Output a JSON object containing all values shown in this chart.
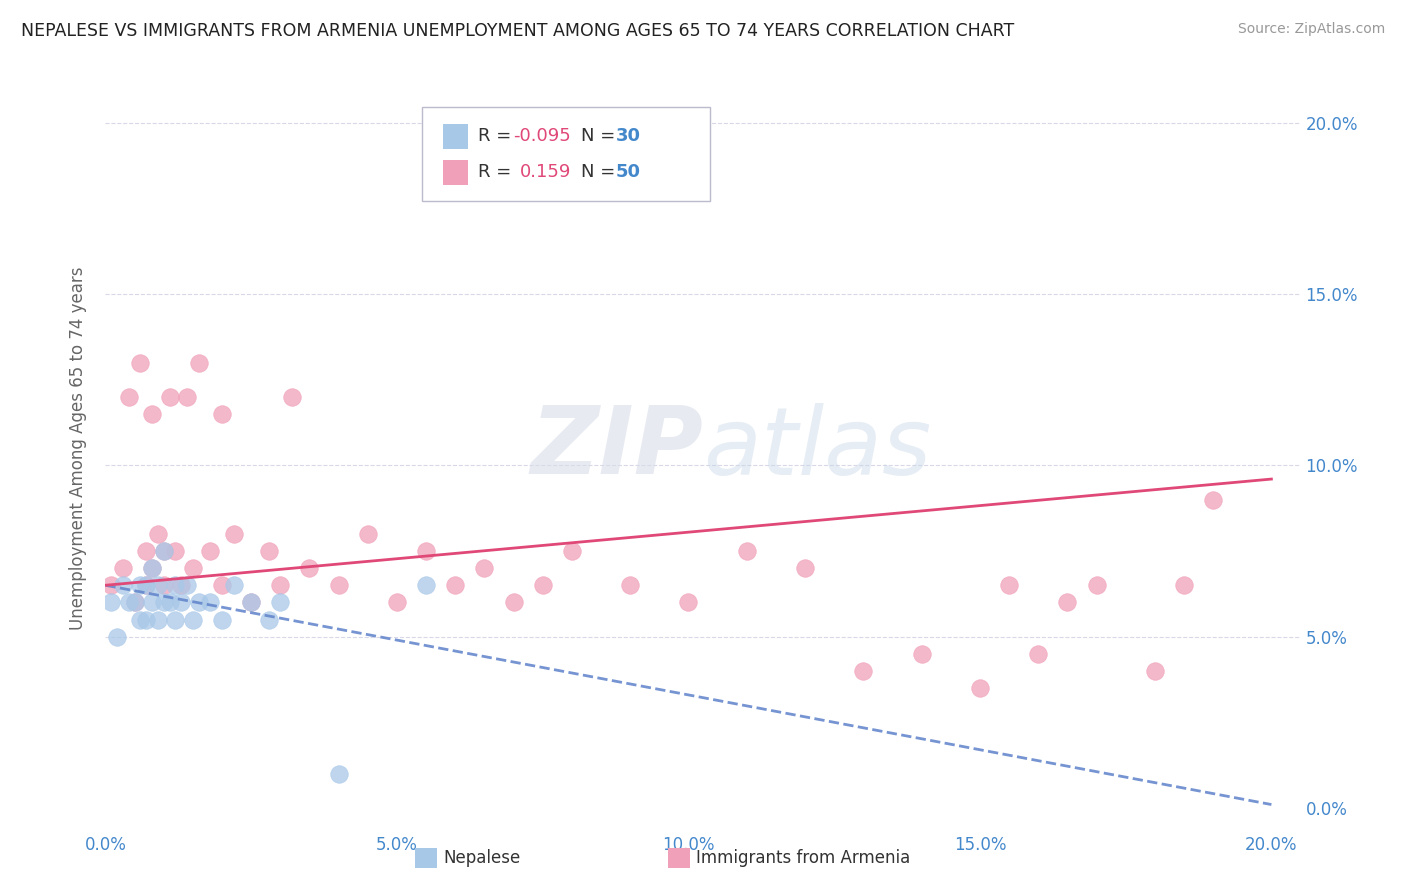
{
  "title": "NEPALESE VS IMMIGRANTS FROM ARMENIA UNEMPLOYMENT AMONG AGES 65 TO 74 YEARS CORRELATION CHART",
  "source": "Source: ZipAtlas.com",
  "ylabel": "Unemployment Among Ages 65 to 74 years",
  "xlim": [
    0.0,
    0.205
  ],
  "ylim": [
    -0.005,
    0.215
  ],
  "xticks": [
    0.0,
    0.05,
    0.1,
    0.15,
    0.2
  ],
  "yticks": [
    0.0,
    0.05,
    0.1,
    0.15,
    0.2
  ],
  "xticklabels": [
    "0.0%",
    "5.0%",
    "10.0%",
    "15.0%",
    "20.0%"
  ],
  "yticklabels": [
    "0.0%",
    "5.0%",
    "10.0%",
    "15.0%",
    "20.0%"
  ],
  "nepalese_color": "#a8c8e8",
  "armenia_color": "#f0a0b8",
  "nepalese_label": "Nepalese",
  "armenia_label": "Immigrants from Armenia",
  "nepalese_R": -0.095,
  "nepalese_N": 30,
  "armenia_R": 0.159,
  "armenia_N": 50,
  "tick_color": "#4488cc",
  "axis_label_color": "#666666",
  "background_color": "#ffffff",
  "grid_color": "#d8d8e8",
  "nepalese_line_color": "#6688cc",
  "armenia_line_color": "#e04878",
  "nepalese_points_x": [
    0.001,
    0.002,
    0.003,
    0.004,
    0.005,
    0.006,
    0.006,
    0.007,
    0.007,
    0.008,
    0.008,
    0.009,
    0.009,
    0.01,
    0.01,
    0.011,
    0.012,
    0.012,
    0.013,
    0.014,
    0.015,
    0.016,
    0.018,
    0.02,
    0.022,
    0.025,
    0.028,
    0.03,
    0.04,
    0.055
  ],
  "nepalese_points_y": [
    0.06,
    0.05,
    0.065,
    0.06,
    0.06,
    0.055,
    0.065,
    0.065,
    0.055,
    0.07,
    0.06,
    0.065,
    0.055,
    0.075,
    0.06,
    0.06,
    0.065,
    0.055,
    0.06,
    0.065,
    0.055,
    0.06,
    0.06,
    0.055,
    0.065,
    0.06,
    0.055,
    0.06,
    0.01,
    0.065
  ],
  "armenia_points_x": [
    0.001,
    0.003,
    0.004,
    0.005,
    0.006,
    0.007,
    0.007,
    0.008,
    0.008,
    0.009,
    0.01,
    0.01,
    0.011,
    0.012,
    0.013,
    0.014,
    0.015,
    0.016,
    0.018,
    0.02,
    0.02,
    0.022,
    0.025,
    0.028,
    0.03,
    0.032,
    0.035,
    0.04,
    0.045,
    0.05,
    0.055,
    0.06,
    0.065,
    0.07,
    0.075,
    0.08,
    0.09,
    0.1,
    0.11,
    0.12,
    0.13,
    0.14,
    0.15,
    0.155,
    0.16,
    0.165,
    0.17,
    0.18,
    0.185,
    0.19
  ],
  "armenia_points_y": [
    0.065,
    0.07,
    0.12,
    0.06,
    0.13,
    0.075,
    0.065,
    0.115,
    0.07,
    0.08,
    0.065,
    0.075,
    0.12,
    0.075,
    0.065,
    0.12,
    0.07,
    0.13,
    0.075,
    0.065,
    0.115,
    0.08,
    0.06,
    0.075,
    0.065,
    0.12,
    0.07,
    0.065,
    0.08,
    0.06,
    0.075,
    0.065,
    0.07,
    0.06,
    0.065,
    0.075,
    0.065,
    0.06,
    0.075,
    0.07,
    0.04,
    0.045,
    0.035,
    0.065,
    0.045,
    0.06,
    0.065,
    0.04,
    0.065,
    0.09
  ]
}
